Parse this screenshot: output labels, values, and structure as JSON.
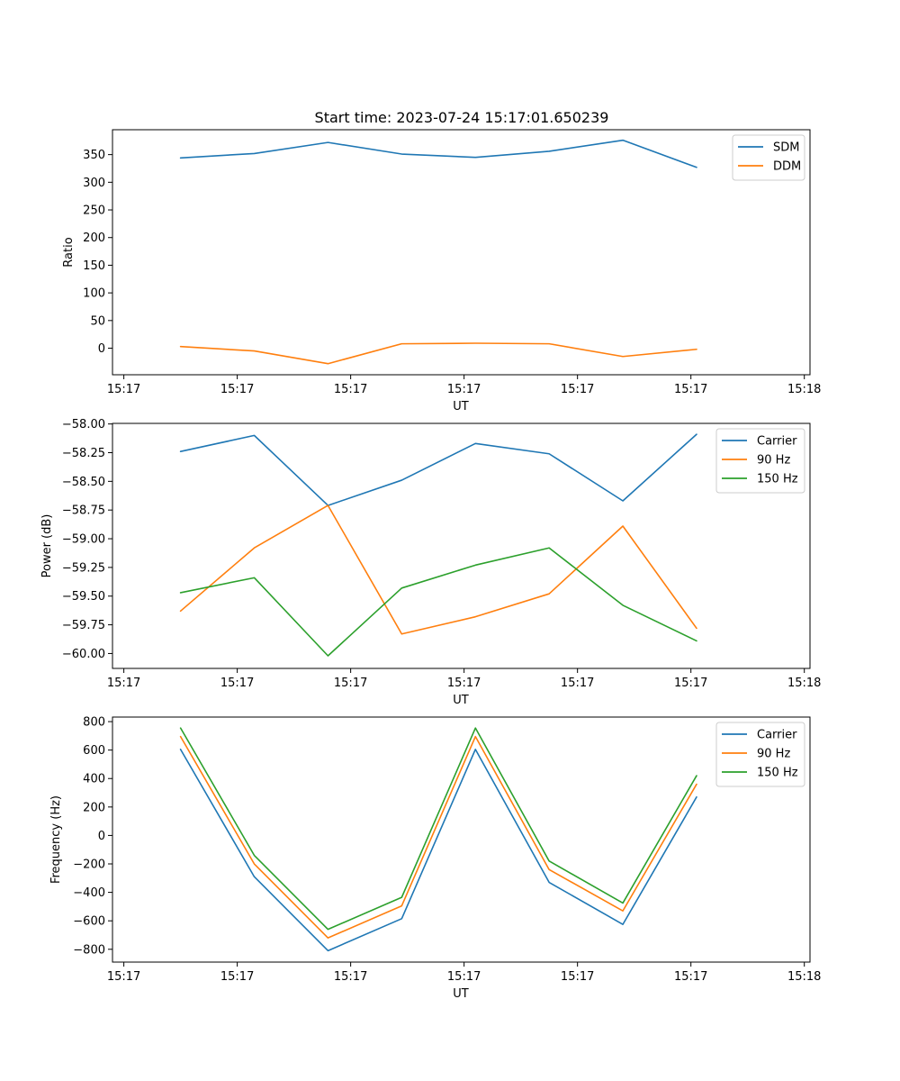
{
  "figure_title": "Start time: 2023-07-24 15:17:01.650239",
  "colors": {
    "blue": "#1f77b4",
    "orange": "#ff7f0e",
    "green": "#2ca02c"
  },
  "chart_data": [
    {
      "type": "line",
      "title": "Start time: 2023-07-24 15:17:01.650239",
      "xlabel": "UT",
      "ylabel": "Ratio",
      "x_tick_labels": [
        "15:17",
        "15:17",
        "15:17",
        "15:17",
        "15:17",
        "15:17",
        "15:18"
      ],
      "x": [
        0.5,
        1.15,
        1.8,
        2.45,
        3.1,
        3.75,
        4.4,
        5.05
      ],
      "xlim": [
        -0.1,
        6.05
      ],
      "x_ticks": [
        0,
        1,
        2,
        3,
        4,
        5,
        6
      ],
      "ylim": [
        -48,
        395
      ],
      "y_ticks": [
        0,
        50,
        100,
        150,
        200,
        250,
        300,
        350
      ],
      "legend": "top-right",
      "series": [
        {
          "name": "SDM",
          "color": "#1f77b4",
          "values": [
            344,
            352,
            372,
            351,
            345,
            356,
            376,
            327
          ]
        },
        {
          "name": "DDM",
          "color": "#ff7f0e",
          "values": [
            3,
            -5,
            -28,
            8,
            9,
            8,
            -15,
            -2
          ]
        }
      ]
    },
    {
      "type": "line",
      "xlabel": "UT",
      "ylabel": "Power (dB)",
      "x_tick_labels": [
        "15:17",
        "15:17",
        "15:17",
        "15:17",
        "15:17",
        "15:17",
        "15:18"
      ],
      "x": [
        0.5,
        1.15,
        1.8,
        2.45,
        3.1,
        3.75,
        4.4,
        5.05
      ],
      "xlim": [
        -0.1,
        6.05
      ],
      "x_ticks": [
        0,
        1,
        2,
        3,
        4,
        5,
        6
      ],
      "ylim": [
        -60.13,
        -57.995
      ],
      "y_ticks": [
        -60.0,
        -59.75,
        -59.5,
        -59.25,
        -59.0,
        -58.75,
        -58.5,
        -58.25,
        -58.0
      ],
      "y_tick_labels": [
        "−60.00",
        "−59.75",
        "−59.50",
        "−59.25",
        "−59.00",
        "−58.75",
        "−58.50",
        "−58.25",
        "−58.00"
      ],
      "legend": "top-right",
      "series": [
        {
          "name": "Carrier",
          "color": "#1f77b4",
          "values": [
            -58.24,
            -58.1,
            -58.71,
            -58.49,
            -58.17,
            -58.26,
            -58.67,
            -58.09
          ]
        },
        {
          "name": "90 Hz",
          "color": "#ff7f0e",
          "values": [
            -59.63,
            -59.08,
            -58.71,
            -59.83,
            -59.68,
            -59.48,
            -58.89,
            -59.78
          ]
        },
        {
          "name": "150 Hz",
          "color": "#2ca02c",
          "values": [
            -59.47,
            -59.34,
            -60.02,
            -59.43,
            -59.23,
            -59.08,
            -59.58,
            -59.89
          ]
        }
      ]
    },
    {
      "type": "line",
      "xlabel": "UT",
      "ylabel": "Frequency (Hz)",
      "x_tick_labels": [
        "15:17",
        "15:17",
        "15:17",
        "15:17",
        "15:17",
        "15:17",
        "15:18"
      ],
      "x": [
        0.5,
        1.15,
        1.8,
        2.45,
        3.1,
        3.75,
        4.4,
        5.05
      ],
      "xlim": [
        -0.1,
        6.05
      ],
      "x_ticks": [
        0,
        1,
        2,
        3,
        4,
        5,
        6
      ],
      "ylim": [
        -890,
        832
      ],
      "y_ticks": [
        -800,
        -600,
        -400,
        -200,
        0,
        200,
        400,
        600,
        800
      ],
      "y_tick_labels": [
        "−800",
        "−600",
        "−400",
        "−200",
        "0",
        "200",
        "400",
        "600",
        "800"
      ],
      "legend": "top-right",
      "series": [
        {
          "name": "Carrier",
          "color": "#1f77b4",
          "values": [
            605,
            -290,
            -810,
            -585,
            605,
            -330,
            -625,
            270
          ]
        },
        {
          "name": "90 Hz",
          "color": "#ff7f0e",
          "values": [
            695,
            -200,
            -720,
            -495,
            695,
            -240,
            -530,
            360
          ]
        },
        {
          "name": "150 Hz",
          "color": "#2ca02c",
          "values": [
            755,
            -140,
            -660,
            -435,
            755,
            -180,
            -475,
            420
          ]
        }
      ]
    }
  ]
}
